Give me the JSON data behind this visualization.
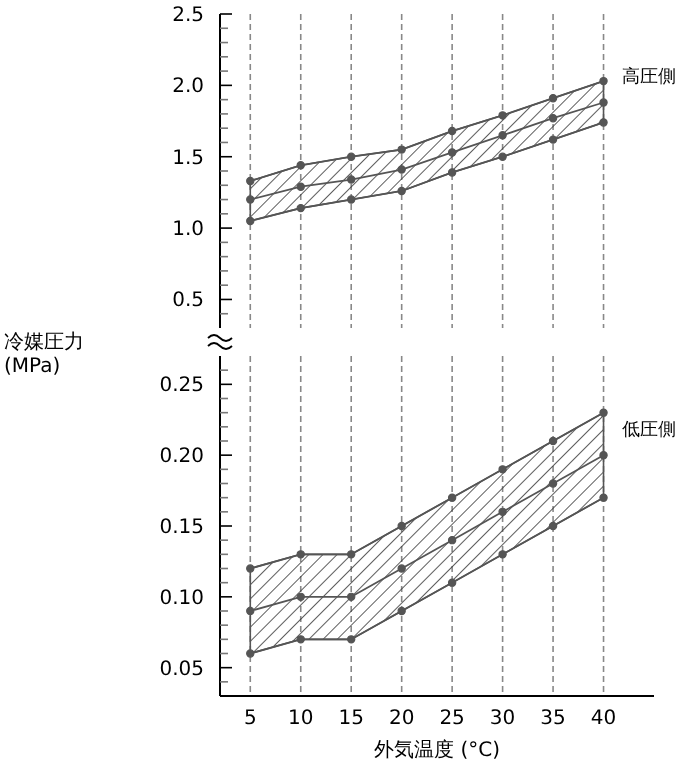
{
  "chart_data": [
    {
      "type": "line",
      "ylim": [
        0.3,
        2.5
      ],
      "xticks": [
        5,
        10,
        15,
        20,
        25,
        30,
        35,
        40
      ],
      "tick_labels": "y",
      "grid": "x",
      "marker": "circle",
      "yticks": [
        {
          "value": 0.4,
          "label": null
        },
        {
          "value": 0.5,
          "label": "0.5"
        },
        {
          "value": 0.6,
          "label": null
        },
        {
          "value": 0.7,
          "label": null
        },
        {
          "value": 0.8,
          "label": null
        },
        {
          "value": 0.9,
          "label": null
        },
        {
          "value": 1,
          "label": "1.0"
        },
        {
          "value": 1.1,
          "label": null
        },
        {
          "value": 1.2,
          "label": null
        },
        {
          "value": 1.3,
          "label": null
        },
        {
          "value": 1.4,
          "label": null
        },
        {
          "value": 1.5,
          "label": "1.5"
        },
        {
          "value": 1.6,
          "label": null
        },
        {
          "value": 1.7,
          "label": null
        },
        {
          "value": 1.8,
          "label": null
        },
        {
          "value": 1.9,
          "label": null
        },
        {
          "value": 2,
          "label": "2.0"
        },
        {
          "value": 2.1,
          "label": null
        },
        {
          "value": 2.2,
          "label": null
        },
        {
          "value": 2.3,
          "label": null
        },
        {
          "value": 2.4,
          "label": null
        },
        {
          "value": 2.5,
          "label": "2.5"
        }
      ],
      "x": [
        5,
        10,
        15,
        20,
        25,
        30,
        35,
        40
      ],
      "series": [
        {
          "name": "高圧側",
          "color": "#555555",
          "values": [
            1.2,
            1.29,
            1.34,
            1.41,
            1.53,
            1.65,
            1.77,
            1.88
          ],
          "lower": [
            1.05,
            1.14,
            1.2,
            1.26,
            1.39,
            1.5,
            1.62,
            1.74
          ],
          "upper": [
            1.33,
            1.44,
            1.5,
            1.55,
            1.68,
            1.79,
            1.91,
            2.03
          ]
        },
        {
          "color": "#555555",
          "values": [
            1.33,
            1.44,
            1.5,
            1.55,
            1.68,
            1.79,
            1.91,
            2.03
          ]
        },
        {
          "color": "#555555",
          "values": [
            1.05,
            1.14,
            1.2,
            1.26,
            1.39,
            1.5,
            1.62,
            1.74
          ]
        }
      ]
    },
    {
      "type": "line",
      "xlim": [
        2,
        45
      ],
      "ylim": [
        0.03,
        0.27
      ],
      "xticks": [
        5,
        10,
        15,
        20,
        25,
        30,
        35,
        40
      ],
      "grid": "x",
      "marker": "circle",
      "xlabel": "外気温度 (°C)",
      "ylabel": "冷媒圧力\n(MPa)",
      "yticks": [
        {
          "value": 0.04,
          "label": null
        },
        {
          "value": 0.05,
          "label": "0.05"
        },
        {
          "value": 0.06,
          "label": null
        },
        {
          "value": 0.07,
          "label": null
        },
        {
          "value": 0.08,
          "label": null
        },
        {
          "value": 0.09,
          "label": null
        },
        {
          "value": 0.1,
          "label": "0.10"
        },
        {
          "value": 0.11,
          "label": null
        },
        {
          "value": 0.12,
          "label": null
        },
        {
          "value": 0.13,
          "label": null
        },
        {
          "value": 0.14,
          "label": null
        },
        {
          "value": 0.15,
          "label": "0.15"
        },
        {
          "value": 0.16,
          "label": null
        },
        {
          "value": 0.17,
          "label": null
        },
        {
          "value": 0.18,
          "label": null
        },
        {
          "value": 0.19,
          "label": null
        },
        {
          "value": 0.2,
          "label": "0.20"
        },
        {
          "value": 0.21,
          "label": null
        },
        {
          "value": 0.22,
          "label": null
        },
        {
          "value": 0.23,
          "label": null
        },
        {
          "value": 0.24,
          "label": null
        },
        {
          "value": 0.25,
          "label": "0.25"
        },
        {
          "value": 0.26,
          "label": null
        }
      ],
      "x": [
        5,
        10,
        15,
        20,
        25,
        30,
        35,
        40
      ],
      "series": [
        {
          "name": "低圧側",
          "color": "#555555",
          "values": [
            0.09,
            0.1,
            0.1,
            0.12,
            0.14,
            0.16,
            0.18,
            0.2
          ],
          "lower": [
            0.06,
            0.07,
            0.07,
            0.09,
            0.11,
            0.13,
            0.15,
            0.17
          ],
          "upper": [
            0.12,
            0.13,
            0.13,
            0.15,
            0.17,
            0.19,
            0.21,
            0.23
          ]
        },
        {
          "color": "#555555",
          "values": [
            0.12,
            0.13,
            0.13,
            0.15,
            0.17,
            0.19,
            0.21,
            0.23
          ]
        },
        {
          "color": "#555555",
          "values": [
            0.06,
            0.07,
            0.07,
            0.09,
            0.11,
            0.13,
            0.15,
            0.17
          ]
        }
      ]
    }
  ]
}
